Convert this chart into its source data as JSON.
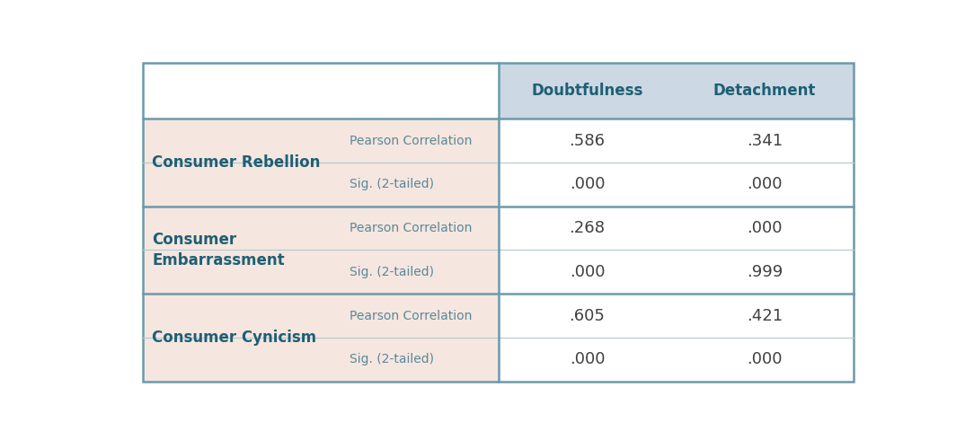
{
  "header_labels": [
    "Doubtfulness",
    "Detachment"
  ],
  "header_bg": "#ccd8e3",
  "row_bg_left": "#f5e6df",
  "row_bg_right": "#ffffff",
  "border_color": "#6b9aaa",
  "thin_line_color": "#b0c8d4",
  "header_text_color": "#1e5f74",
  "left_bold_color": "#1e5f74",
  "sub_label_color": "#5a8899",
  "value_color": "#404040",
  "rows": [
    {
      "group": "Consumer Rebellion",
      "sub_rows": [
        {
          "label": "Pearson Correlation",
          "doubtfulness": ".586",
          "detachment": ".341"
        },
        {
          "label": "Sig. (2-tailed)",
          "doubtfulness": ".000",
          "detachment": ".000"
        }
      ]
    },
    {
      "group": "Consumer\nEmbarrassment",
      "sub_rows": [
        {
          "label": "Pearson Correlation",
          "doubtfulness": ".268",
          "detachment": ".000"
        },
        {
          "label": "Sig. (2-tailed)",
          "doubtfulness": ".000",
          "detachment": ".999"
        }
      ]
    },
    {
      "group": "Consumer Cynicism",
      "sub_rows": [
        {
          "label": "Pearson Correlation",
          "doubtfulness": ".605",
          "detachment": ".421"
        },
        {
          "label": "Sig. (2-tailed)",
          "doubtfulness": ".000",
          "detachment": ".000"
        }
      ]
    }
  ],
  "header_fontsize": 12,
  "group_fontsize": 12,
  "label_fontsize": 10,
  "value_fontsize": 13,
  "fig_width": 10.74,
  "fig_height": 4.9,
  "dpi": 100
}
